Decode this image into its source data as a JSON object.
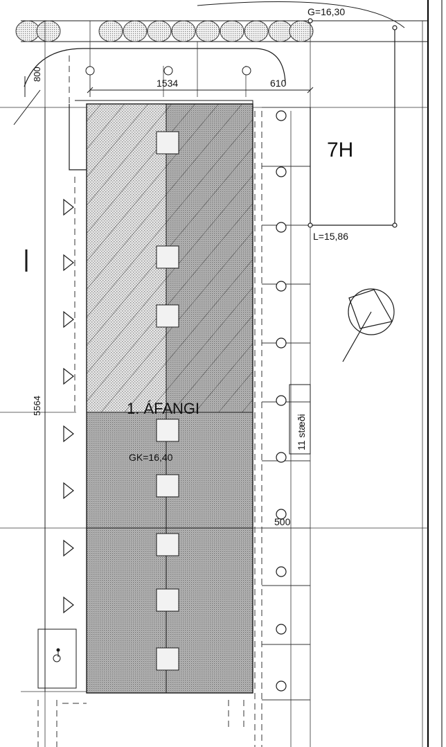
{
  "labels": {
    "g_level": "G=16,30",
    "l_level": "L=15,86",
    "dim_800": "800",
    "dim_1534": "1534",
    "dim_610": "610",
    "dim_5564": "5564",
    "dim_500": "500",
    "lot_id": "7H",
    "phase": "1. ÁFANGI",
    "floor_level": "GK=16,40",
    "parking": "11 stæði"
  },
  "icons": {
    "north_arrow": "north-arrow-icon",
    "accessible_parking": "wheelchair-icon"
  },
  "colors": {
    "line": "#1a1a1a",
    "shade_light": "#cfcfcf",
    "shade_dark": "#a8a8a8"
  }
}
